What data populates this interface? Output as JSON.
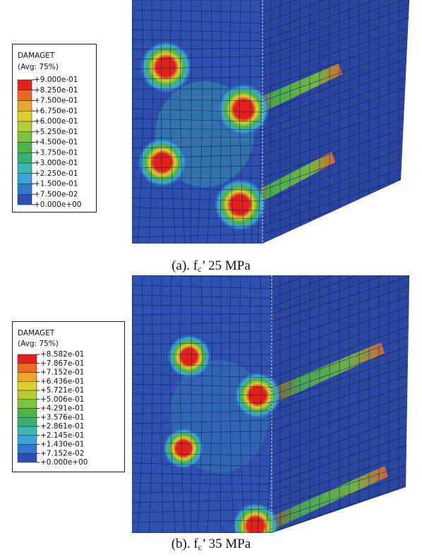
{
  "panels": [
    {
      "legend": {
        "title": "DAMAGET",
        "subtitle": "(Avg: 75%)",
        "labels": [
          "+9.000e-01",
          "+8.250e-01",
          "+7.500e-01",
          "+6.750e-01",
          "+6.000e-01",
          "+5.250e-01",
          "+4.500e-01",
          "+3.750e-01",
          "+3.000e-01",
          "+2.250e-01",
          "+1.500e-01",
          "+7.500e-02",
          "+0.000e+00"
        ],
        "colors": [
          "#e3211c",
          "#ea6a24",
          "#eaa530",
          "#dccf2c",
          "#b4cd33",
          "#7cc23b",
          "#4db546",
          "#3dae70",
          "#3bb8b2",
          "#39a5dc",
          "#2f78cc",
          "#2d4fb4"
        ]
      },
      "caption": {
        "prefix": "(a). f",
        "subscript": "c",
        "suffix": "’ 25 MPa"
      }
    },
    {
      "legend": {
        "title": "DAMAGET",
        "subtitle": "(Avg: 75%)",
        "labels": [
          "+8.582e-01",
          "+7.867e-01",
          "+7.152e-01",
          "+6.436e-01",
          "+5.721e-01",
          "+5.006e-01",
          "+4.291e-01",
          "+3.576e-01",
          "+2.861e-01",
          "+2.145e-01",
          "+1.430e-01",
          "+7.152e-02",
          "+0.000e+00"
        ],
        "colors": [
          "#e3211c",
          "#ea6a24",
          "#eaa530",
          "#dccf2c",
          "#b4cd33",
          "#7cc23b",
          "#4db546",
          "#3dae70",
          "#3bb8b2",
          "#39a5dc",
          "#2f78cc",
          "#2d4fb4"
        ]
      },
      "caption": {
        "prefix": "(b). f",
        "subscript": "c",
        "suffix": "’ 35 MPa"
      }
    }
  ]
}
